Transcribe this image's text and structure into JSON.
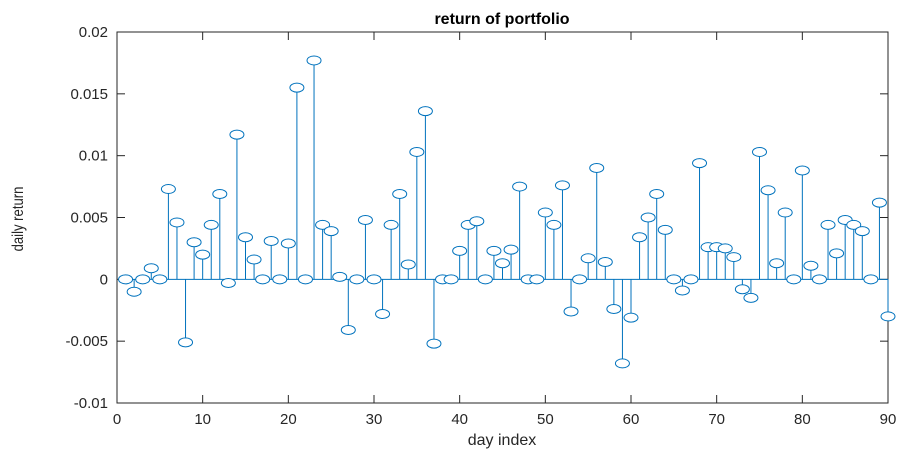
{
  "chart_data": {
    "type": "stem",
    "title": "return of portfolio",
    "xlabel": "day index",
    "ylabel": "daily return",
    "xlim": [
      0,
      90
    ],
    "ylim": [
      -0.01,
      0.02
    ],
    "xticks": [
      0,
      10,
      20,
      30,
      40,
      50,
      60,
      70,
      80,
      90
    ],
    "xtick_labels": [
      "0",
      "10",
      "20",
      "30",
      "40",
      "50",
      "60",
      "70",
      "80",
      "90"
    ],
    "yticks": [
      -0.01,
      -0.005,
      0,
      0.005,
      0.01,
      0.015,
      0.02
    ],
    "ytick_labels": [
      "-0.01",
      "-0.005",
      "0",
      "0.005",
      "0.01",
      "0.015",
      "0.02"
    ],
    "grid": false,
    "box": true,
    "colors": {
      "series": "#0072BD",
      "axis": "#262626"
    },
    "x": [
      1,
      2,
      3,
      4,
      5,
      6,
      7,
      8,
      9,
      10,
      11,
      12,
      13,
      14,
      15,
      16,
      17,
      18,
      19,
      20,
      21,
      22,
      23,
      24,
      25,
      26,
      27,
      28,
      29,
      30,
      31,
      32,
      33,
      34,
      35,
      36,
      37,
      38,
      39,
      40,
      41,
      42,
      43,
      44,
      45,
      46,
      47,
      48,
      49,
      50,
      51,
      52,
      53,
      54,
      55,
      56,
      57,
      58,
      59,
      60,
      61,
      62,
      63,
      64,
      65,
      66,
      67,
      68,
      69,
      70,
      71,
      72,
      73,
      74,
      75,
      76,
      77,
      78,
      79,
      80,
      81,
      82,
      83,
      84,
      85,
      86,
      87,
      88,
      89,
      90
    ],
    "y": [
      0,
      -0.001,
      0,
      0.0009,
      0,
      0.0073,
      0.0046,
      -0.0051,
      0.003,
      0.002,
      0.0044,
      0.0069,
      -0.0003,
      0.0117,
      0.0034,
      0.0016,
      0,
      0.0031,
      0,
      0.0029,
      0.0155,
      0,
      0.0177,
      0.0044,
      0.0039,
      0.0002,
      -0.0041,
      0,
      0.0048,
      0,
      -0.0028,
      0.0044,
      0.0069,
      0.0012,
      0.0103,
      0.0136,
      -0.0052,
      0,
      0,
      0.0023,
      0.0044,
      0.0047,
      0,
      0.0023,
      0.0013,
      0.0024,
      0.0075,
      0,
      0,
      0.0054,
      0.0044,
      0.0076,
      -0.0026,
      0,
      0.0017,
      0.009,
      0.0014,
      -0.0024,
      -0.0068,
      -0.0031,
      0.0034,
      0.005,
      0.0069,
      0.004,
      0,
      -0.0009,
      0,
      0.0094,
      0.0026,
      0.0026,
      0.0025,
      0.0018,
      -0.0008,
      -0.0015,
      0.0103,
      0.0072,
      0.0013,
      0.0054,
      0,
      0.0088,
      0.0011,
      0,
      0.0044,
      0.0021,
      0.0048,
      0.0044,
      0.0039,
      0,
      0.0062,
      -0.003
    ]
  }
}
